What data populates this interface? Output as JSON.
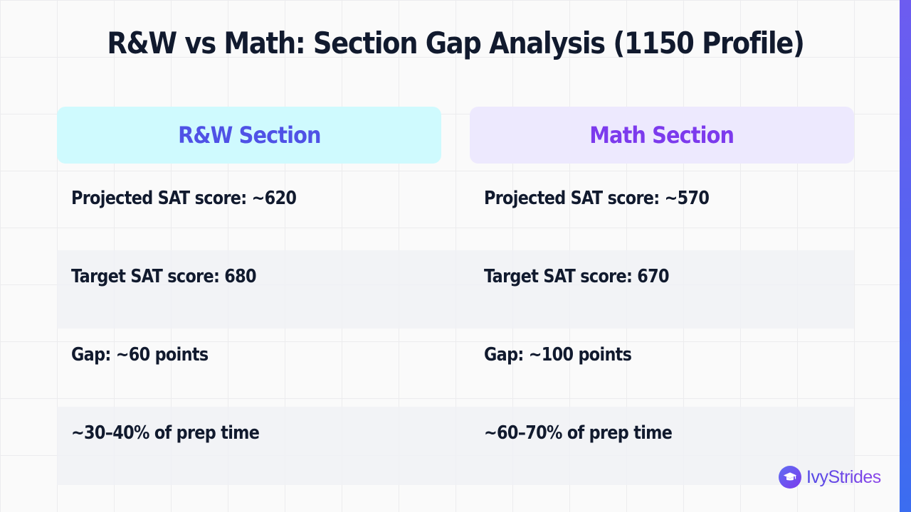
{
  "title": "R&W vs Math: Section Gap Analysis (1150 Profile)",
  "columns": [
    {
      "header": "R&W Section",
      "rows": [
        "Projected SAT score: ~620",
        "Target SAT score: 680",
        "Gap: ~60 points",
        "~30–40% of prep time"
      ]
    },
    {
      "header": "Math Section",
      "rows": [
        "Projected SAT score: ~570",
        "Target SAT score: 670",
        "Gap: ~100 points",
        "~60–70% of prep time"
      ]
    }
  ],
  "brand": {
    "name": "IvyStrides",
    "icon": "graduation-cap-icon"
  },
  "colors": {
    "rw_header_bg": "#cffafe",
    "rw_header_text": "#4f52e6",
    "math_header_bg": "#ede9fe",
    "math_header_text": "#7c3aed",
    "accent": "#6d5cf0"
  }
}
